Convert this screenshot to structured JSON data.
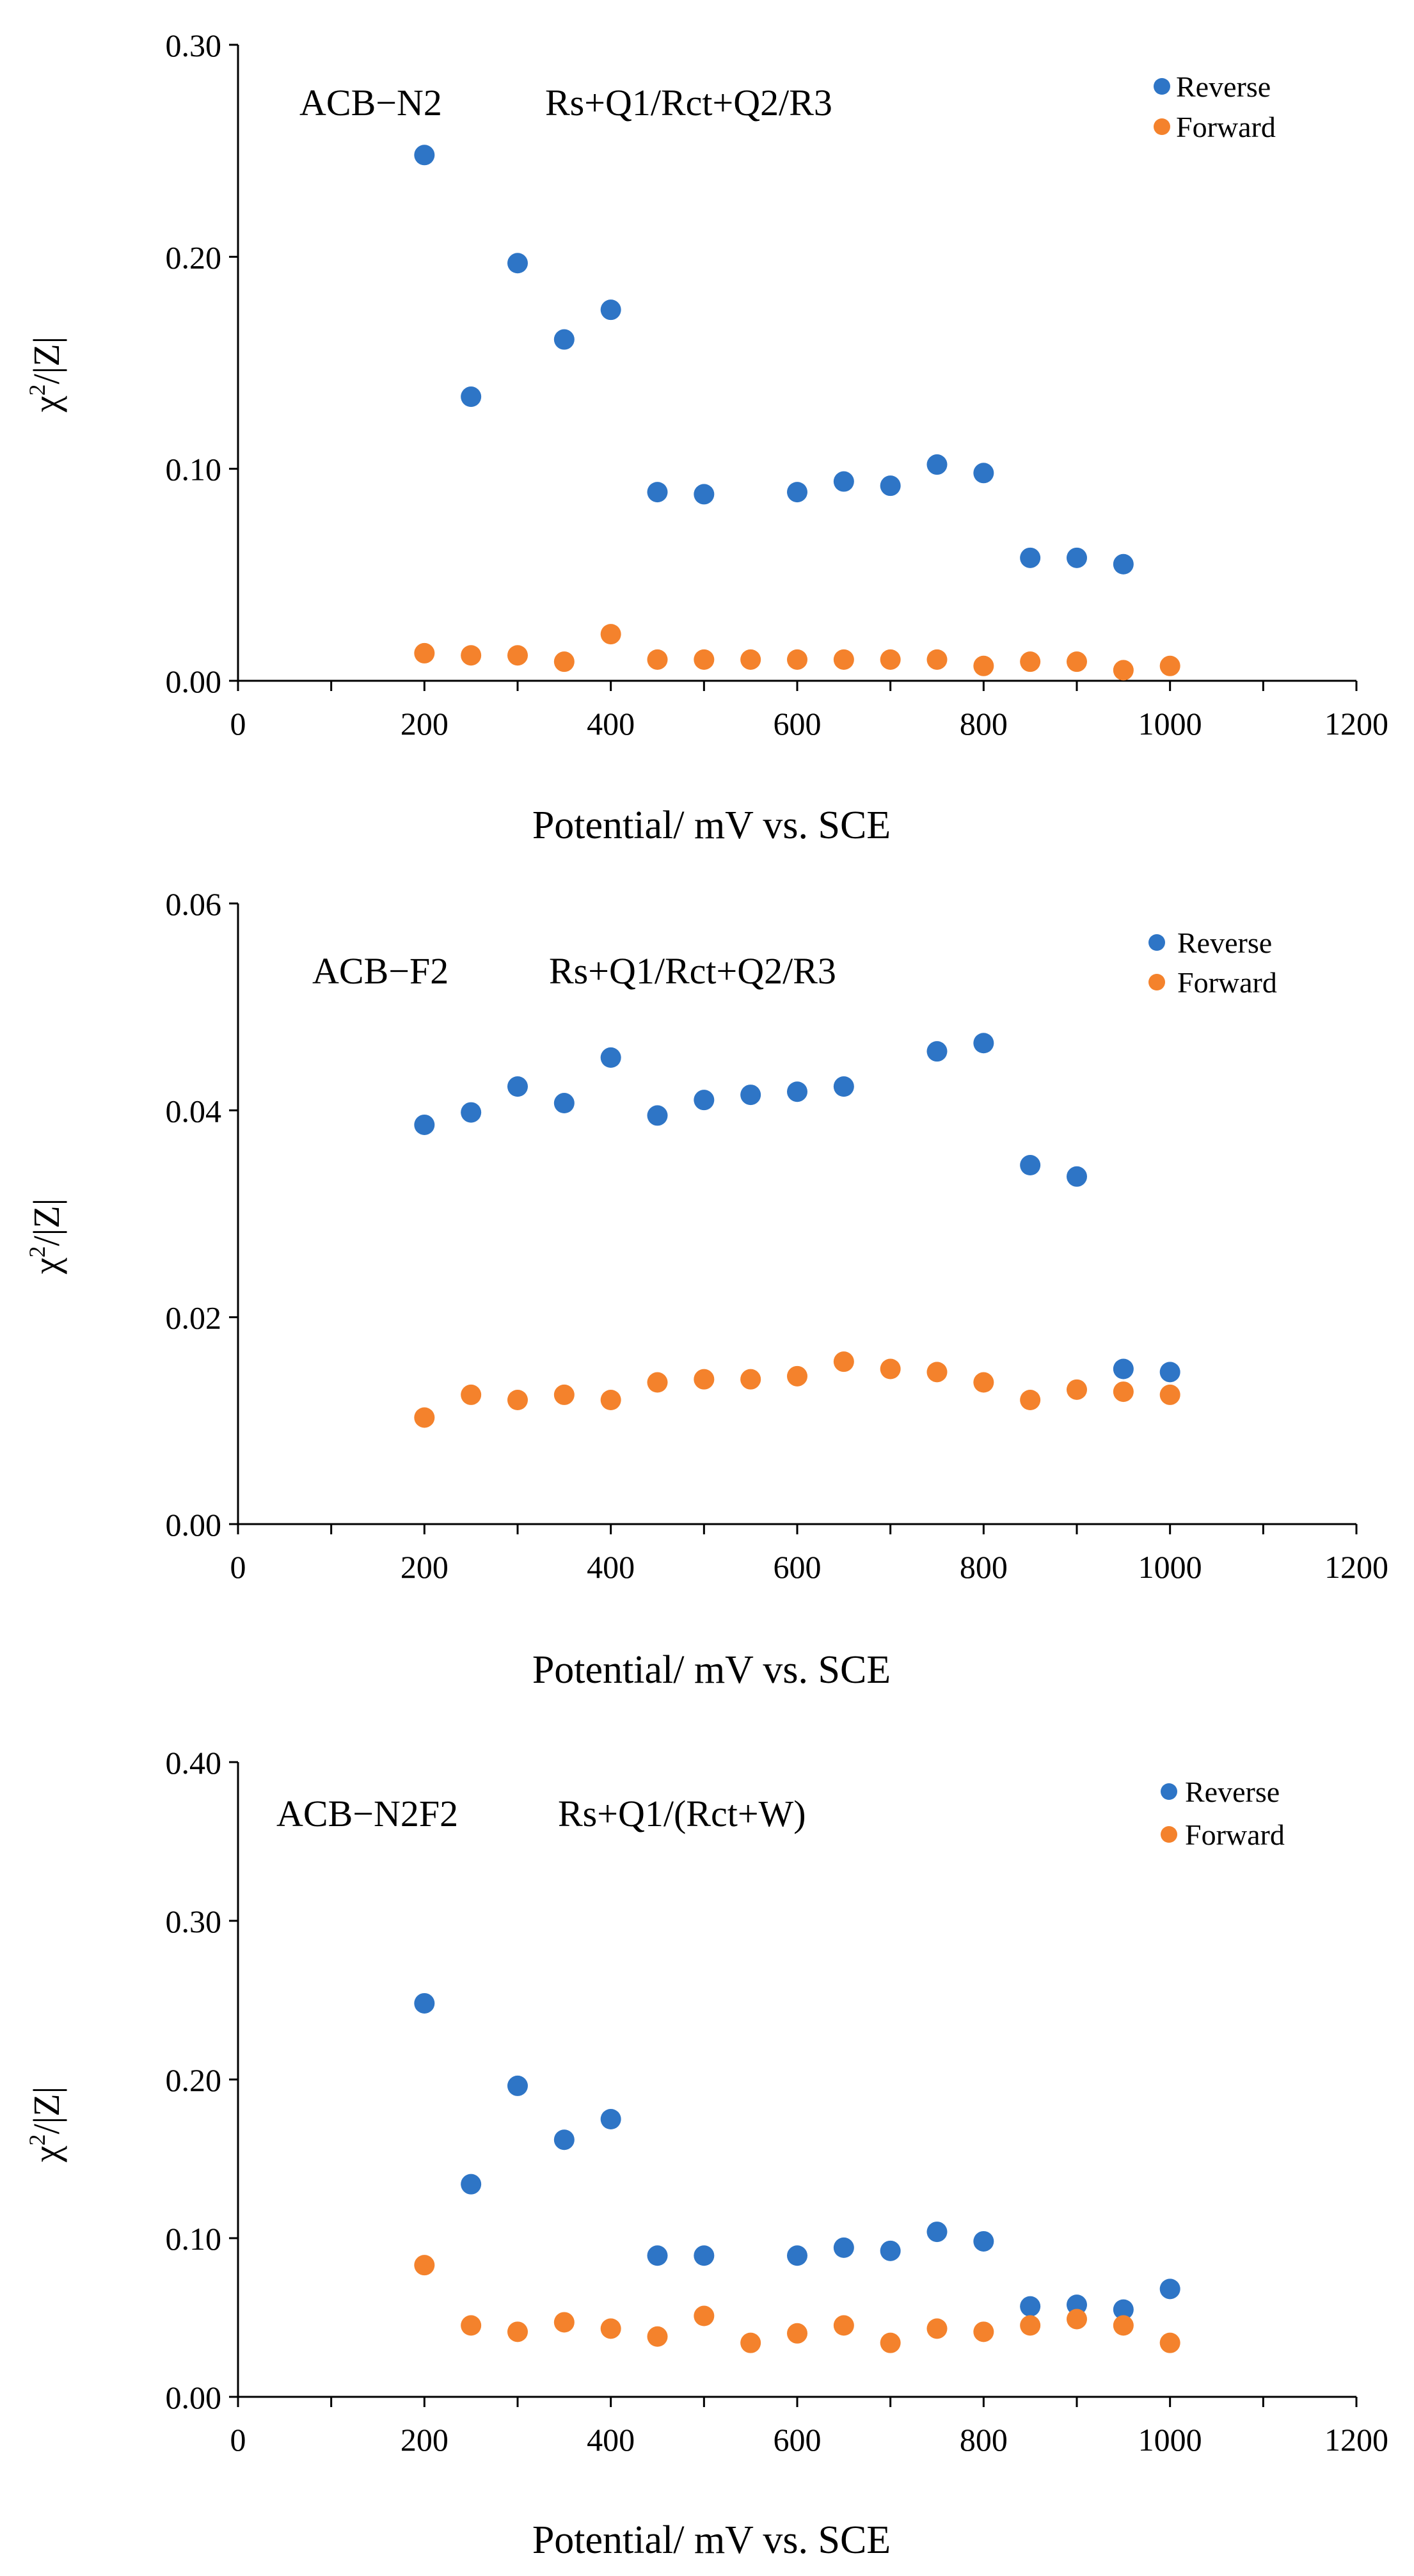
{
  "chart_data": [
    {
      "type": "scatter",
      "title": "ACB−N2",
      "model": "Rs+Q1/Rct+Q2/R3",
      "xlabel": "Potential/ mV vs. SCE",
      "ylabel_main": "χ",
      "ylabel_sup": "2",
      "ylabel_rest": "/|Z|",
      "xlim": [
        0,
        1200
      ],
      "ylim": [
        0,
        0.3
      ],
      "xticks": [
        0,
        200,
        400,
        600,
        800,
        1000,
        1200
      ],
      "xtick_labels": [
        "0",
        "200",
        "400",
        "600",
        "800",
        "1000",
        "1200"
      ],
      "yticks": [
        0,
        0.1,
        0.2,
        0.3
      ],
      "ytick_labels": [
        "0.00",
        "0.10",
        "0.20",
        "0.30"
      ],
      "legend_position": "top-right",
      "series": [
        {
          "name": "Reverse",
          "color": "#2E75C6",
          "x": [
            200,
            250,
            300,
            350,
            400,
            450,
            500,
            600,
            650,
            700,
            750,
            800,
            850,
            900,
            950
          ],
          "y": [
            0.248,
            0.134,
            0.197,
            0.161,
            0.175,
            0.089,
            0.088,
            0.089,
            0.094,
            0.092,
            0.102,
            0.098,
            0.058,
            0.058,
            0.055
          ]
        },
        {
          "name": "Forward",
          "color": "#F4822C",
          "x": [
            200,
            250,
            300,
            350,
            400,
            450,
            500,
            550,
            600,
            650,
            700,
            750,
            800,
            850,
            900,
            950,
            1000
          ],
          "y": [
            0.013,
            0.012,
            0.012,
            0.009,
            0.022,
            0.01,
            0.01,
            0.01,
            0.01,
            0.01,
            0.01,
            0.01,
            0.007,
            0.009,
            0.009,
            0.005,
            0.007
          ]
        }
      ]
    },
    {
      "type": "scatter",
      "title": "ACB−F2",
      "model": "Rs+Q1/Rct+Q2/R3",
      "xlabel": "Potential/ mV vs. SCE",
      "ylabel_main": "χ",
      "ylabel_sup": "2",
      "ylabel_rest": "/|Z|",
      "xlim": [
        0,
        1200
      ],
      "ylim": [
        0,
        0.06
      ],
      "xticks": [
        0,
        200,
        400,
        600,
        800,
        1000,
        1200
      ],
      "xtick_labels": [
        "0",
        "200",
        "400",
        "600",
        "800",
        "1000",
        "1200"
      ],
      "yticks": [
        0,
        0.02,
        0.04,
        0.06
      ],
      "ytick_labels": [
        "0.00",
        "0.02",
        "0.04",
        "0.06"
      ],
      "legend_position": "top-right",
      "series": [
        {
          "name": "Reverse",
          "color": "#2E75C6",
          "x": [
            200,
            250,
            300,
            350,
            400,
            450,
            500,
            550,
            600,
            650,
            750,
            800,
            850,
            900,
            950,
            1000
          ],
          "y": [
            0.0386,
            0.0398,
            0.0423,
            0.0407,
            0.0451,
            0.0395,
            0.041,
            0.0415,
            0.0418,
            0.0423,
            0.0457,
            0.0465,
            0.0347,
            0.0336,
            0.015,
            0.0147
          ]
        },
        {
          "name": "Forward",
          "color": "#F4822C",
          "x": [
            200,
            250,
            300,
            350,
            400,
            450,
            500,
            550,
            600,
            650,
            700,
            750,
            800,
            850,
            900,
            950,
            1000
          ],
          "y": [
            0.0103,
            0.0125,
            0.012,
            0.0125,
            0.012,
            0.0137,
            0.014,
            0.014,
            0.0143,
            0.0157,
            0.015,
            0.0147,
            0.0137,
            0.012,
            0.013,
            0.0128,
            0.0125
          ]
        }
      ]
    },
    {
      "type": "scatter",
      "title": "ACB−N2F2",
      "model": "Rs+Q1/(Rct+W)",
      "xlabel": "Potential/ mV vs. SCE",
      "ylabel_main": "χ",
      "ylabel_sup": "2",
      "ylabel_rest": "/|Z|",
      "xlim": [
        0,
        1200
      ],
      "ylim": [
        0,
        0.4
      ],
      "xticks": [
        0,
        200,
        400,
        600,
        800,
        1000,
        1200
      ],
      "xtick_labels": [
        "0",
        "200",
        "400",
        "600",
        "800",
        "1000",
        "1200"
      ],
      "yticks": [
        0,
        0.1,
        0.2,
        0.3,
        0.4
      ],
      "ytick_labels": [
        "0.00",
        "0.10",
        "0.20",
        "0.30",
        "0.40"
      ],
      "legend_position": "top-right",
      "series": [
        {
          "name": "Reverse",
          "color": "#2E75C6",
          "x": [
            200,
            250,
            300,
            350,
            400,
            450,
            500,
            600,
            650,
            700,
            750,
            800,
            850,
            900,
            950,
            1000
          ],
          "y": [
            0.248,
            0.134,
            0.196,
            0.162,
            0.175,
            0.089,
            0.089,
            0.089,
            0.094,
            0.092,
            0.104,
            0.098,
            0.057,
            0.058,
            0.055,
            0.068
          ]
        },
        {
          "name": "Forward",
          "color": "#F4822C",
          "x": [
            200,
            250,
            300,
            350,
            400,
            450,
            500,
            550,
            600,
            650,
            700,
            750,
            800,
            850,
            900,
            950,
            1000
          ],
          "y": [
            0.083,
            0.045,
            0.041,
            0.047,
            0.043,
            0.038,
            0.051,
            0.034,
            0.04,
            0.045,
            0.034,
            0.043,
            0.041,
            0.045,
            0.049,
            0.045,
            0.034
          ]
        }
      ]
    }
  ]
}
